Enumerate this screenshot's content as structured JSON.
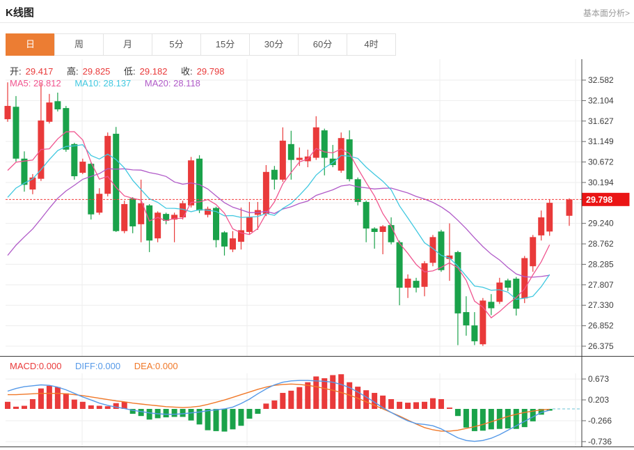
{
  "header": {
    "title": "K线图",
    "link": "基本面分析>"
  },
  "tabs": {
    "items": [
      "日",
      "周",
      "月",
      "5分",
      "15分",
      "30分",
      "60分",
      "4时"
    ],
    "active_index": 0
  },
  "legend": {
    "open_label": "开:",
    "open": "29.417",
    "high_label": "高:",
    "high": "29.825",
    "low_label": "低:",
    "low": "29.182",
    "close_label": "收:",
    "close": "29.798",
    "ma5": "MA5: 28.812",
    "ma10": "MA10: 28.137",
    "ma20": "MA20: 28.118"
  },
  "macd_legend": {
    "macd": "MACD:0.000",
    "diff": "DIFF:0.000",
    "dea": "DEA:0.000"
  },
  "colors": {
    "up": "#e93a3a",
    "down": "#1aa24a",
    "ma5": "#f0558f",
    "ma10": "#40c8e0",
    "ma20": "#b05ac8",
    "diff": "#5599e8",
    "dea": "#f07828",
    "accent": "#ec7d33",
    "price_tag_bg": "#ea1515",
    "price_tag_text": "#ffffff",
    "grid": "#ededed",
    "frame": "#3a3a3a",
    "tick_text": "#3c3c3c",
    "dashed_price": "#f23c3c",
    "zero_dash": "#86cedd"
  },
  "chart_data": {
    "type": "candlestick",
    "title": "K线图",
    "price_panel": {
      "y_ticks": [
        32.582,
        32.104,
        31.627,
        31.149,
        30.672,
        30.194,
        29.24,
        28.762,
        28.285,
        27.807,
        27.33,
        26.852,
        26.375
      ],
      "ylim": [
        26.375,
        32.582
      ],
      "current_price": "29.798",
      "current_price_value": 29.798,
      "ma_periods": [
        5,
        10,
        20
      ],
      "ma_prehistory_closes": [
        25.8,
        26.0,
        26.3,
        26.6,
        26.9,
        27.1,
        27.3,
        27.5,
        27.7,
        27.9,
        28.1,
        28.6,
        29.0,
        29.3,
        29.5,
        29.7,
        29.8,
        30.0,
        30.2,
        30.4
      ],
      "candles_ohlc": [
        [
          31.67,
          32.53,
          31.61,
          31.98
        ],
        [
          31.96,
          32.21,
          30.68,
          30.75
        ],
        [
          30.75,
          30.92,
          29.98,
          30.14
        ],
        [
          30.03,
          30.39,
          29.92,
          30.31
        ],
        [
          30.28,
          32.5,
          30.23,
          31.64
        ],
        [
          31.61,
          32.26,
          31.57,
          32.06
        ],
        [
          32.09,
          32.29,
          31.85,
          31.9
        ],
        [
          31.93,
          31.98,
          30.91,
          30.96
        ],
        [
          31.09,
          31.12,
          30.26,
          30.34
        ],
        [
          30.42,
          30.75,
          30.39,
          30.68
        ],
        [
          30.63,
          30.66,
          29.33,
          29.45
        ],
        [
          29.49,
          30.06,
          29.44,
          29.93
        ],
        [
          29.93,
          31.36,
          29.87,
          31.28
        ],
        [
          31.33,
          31.49,
          29.04,
          29.06
        ],
        [
          29.06,
          29.77,
          29.01,
          29.69
        ],
        [
          29.82,
          29.85,
          29.01,
          29.17
        ],
        [
          29.22,
          30.26,
          28.8,
          29.71
        ],
        [
          29.66,
          29.69,
          28.57,
          28.84
        ],
        [
          28.89,
          29.52,
          28.8,
          29.49
        ],
        [
          29.46,
          29.49,
          29.22,
          29.3
        ],
        [
          29.33,
          29.49,
          28.8,
          29.44
        ],
        [
          29.38,
          29.77,
          29.33,
          29.71
        ],
        [
          29.66,
          30.79,
          29.61,
          30.71
        ],
        [
          30.75,
          30.83,
          29.48,
          29.54
        ],
        [
          29.44,
          29.63,
          29.38,
          29.58
        ],
        [
          29.6,
          29.63,
          28.68,
          28.85
        ],
        [
          29.03,
          29.06,
          28.49,
          28.7
        ],
        [
          28.63,
          29.06,
          28.57,
          28.89
        ],
        [
          28.81,
          29.61,
          28.63,
          29.08
        ],
        [
          29.04,
          29.74,
          28.99,
          29.38
        ],
        [
          29.44,
          29.74,
          29.09,
          29.55
        ],
        [
          29.46,
          30.6,
          29.41,
          30.44
        ],
        [
          30.49,
          30.58,
          30.03,
          30.26
        ],
        [
          30.26,
          31.48,
          30.21,
          31.17
        ],
        [
          31.09,
          31.4,
          30.26,
          30.72
        ],
        [
          30.72,
          31.01,
          30.58,
          30.77
        ],
        [
          30.69,
          30.96,
          30.55,
          30.8
        ],
        [
          30.77,
          31.74,
          30.72,
          31.48
        ],
        [
          31.41,
          31.45,
          30.36,
          30.77
        ],
        [
          30.75,
          31.07,
          30.55,
          30.6
        ],
        [
          30.47,
          31.36,
          30.42,
          31.23
        ],
        [
          31.2,
          31.41,
          30.22,
          30.27
        ],
        [
          30.27,
          30.31,
          29.66,
          29.74
        ],
        [
          29.74,
          29.77,
          28.8,
          29.12
        ],
        [
          29.12,
          29.15,
          28.65,
          29.04
        ],
        [
          29.04,
          29.2,
          28.52,
          29.17
        ],
        [
          29.2,
          29.38,
          28.75,
          28.8
        ],
        [
          28.8,
          28.84,
          27.33,
          27.74
        ],
        [
          27.74,
          28.05,
          27.5,
          27.95
        ],
        [
          27.9,
          27.97,
          27.63,
          27.74
        ],
        [
          27.76,
          28.36,
          27.54,
          28.31
        ],
        [
          28.32,
          28.97,
          28.24,
          28.92
        ],
        [
          29.05,
          29.09,
          28.11,
          28.15
        ],
        [
          28.41,
          29.24,
          27.9,
          28.49
        ],
        [
          28.57,
          28.6,
          26.4,
          27.14
        ],
        [
          27.17,
          27.54,
          26.62,
          26.86
        ],
        [
          26.86,
          27.17,
          26.4,
          26.49
        ],
        [
          26.42,
          27.5,
          26.38,
          27.44
        ],
        [
          27.41,
          27.59,
          27.1,
          27.26
        ],
        [
          27.41,
          27.97,
          27.36,
          27.86
        ],
        [
          27.91,
          27.95,
          27.66,
          27.74
        ],
        [
          27.95,
          27.99,
          27.09,
          27.25
        ],
        [
          27.49,
          28.48,
          27.38,
          28.43
        ],
        [
          28.24,
          28.97,
          28.11,
          28.92
        ],
        [
          28.96,
          29.54,
          28.84,
          29.38
        ],
        [
          29.05,
          29.8,
          28.95,
          29.72
        ],
        [
          29.417,
          29.825,
          29.182,
          29.798
        ]
      ]
    },
    "macd_panel": {
      "y_ticks": [
        0.673,
        0.203,
        -0.266,
        -0.736
      ],
      "histogram": [
        0.16,
        0.05,
        0.07,
        0.22,
        0.46,
        0.52,
        0.49,
        0.35,
        0.21,
        0.16,
        0.08,
        0.07,
        0.06,
        0.13,
        0.16,
        -0.11,
        -0.16,
        -0.24,
        -0.21,
        -0.19,
        -0.18,
        -0.18,
        -0.26,
        -0.35,
        -0.48,
        -0.5,
        -0.51,
        -0.46,
        -0.38,
        -0.22,
        -0.11,
        0.12,
        0.19,
        0.36,
        0.41,
        0.49,
        0.6,
        0.73,
        0.69,
        0.76,
        0.78,
        0.6,
        0.5,
        0.42,
        0.36,
        0.3,
        0.22,
        0.16,
        0.14,
        0.15,
        0.16,
        0.24,
        0.22,
        0.03,
        -0.16,
        -0.42,
        -0.5,
        -0.49,
        -0.46,
        -0.45,
        -0.44,
        -0.45,
        -0.41,
        -0.28,
        -0.13,
        -0.04,
        0.0
      ],
      "diff": [
        0.4,
        0.46,
        0.5,
        0.52,
        0.54,
        0.53,
        0.49,
        0.43,
        0.35,
        0.27,
        0.2,
        0.13,
        0.08,
        0.04,
        0.01,
        -0.03,
        -0.06,
        -0.09,
        -0.11,
        -0.12,
        -0.12,
        -0.11,
        -0.09,
        -0.07,
        -0.04,
        -0.02,
        0.0,
        0.04,
        0.12,
        0.22,
        0.34,
        0.45,
        0.54,
        0.6,
        0.63,
        0.64,
        0.64,
        0.63,
        0.62,
        0.6,
        0.55,
        0.48,
        0.38,
        0.27,
        0.15,
        0.03,
        -0.08,
        -0.18,
        -0.27,
        -0.33,
        -0.35,
        -0.38,
        -0.45,
        -0.55,
        -0.65,
        -0.71,
        -0.73,
        -0.71,
        -0.66,
        -0.58,
        -0.48,
        -0.38,
        -0.28,
        -0.18,
        -0.08,
        -0.03,
        0.0
      ],
      "dea": [
        0.32,
        0.32,
        0.33,
        0.34,
        0.35,
        0.35,
        0.35,
        0.34,
        0.32,
        0.3,
        0.27,
        0.24,
        0.21,
        0.18,
        0.16,
        0.13,
        0.11,
        0.09,
        0.07,
        0.05,
        0.04,
        0.03,
        0.04,
        0.06,
        0.1,
        0.15,
        0.2,
        0.26,
        0.32,
        0.38,
        0.44,
        0.49,
        0.53,
        0.55,
        0.56,
        0.55,
        0.53,
        0.5,
        0.46,
        0.42,
        0.37,
        0.31,
        0.24,
        0.16,
        0.08,
        0.0,
        -0.08,
        -0.16,
        -0.25,
        -0.34,
        -0.42,
        -0.47,
        -0.5,
        -0.5,
        -0.48,
        -0.44,
        -0.4,
        -0.35,
        -0.29,
        -0.23,
        -0.17,
        -0.12,
        -0.08,
        -0.05,
        -0.02,
        -0.01,
        0.0
      ]
    }
  }
}
